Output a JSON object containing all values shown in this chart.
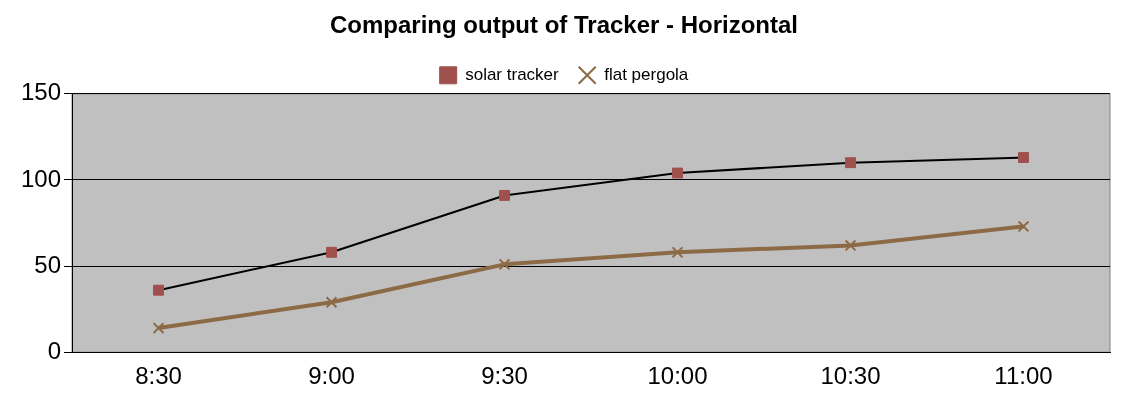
{
  "chart_data": {
    "type": "line",
    "title": "Comparing output of Tracker - Horizontal",
    "categories": [
      "8:30",
      "9:00",
      "9:30",
      "10:00",
      "10:30",
      "11:00"
    ],
    "series": [
      {
        "name": "solar tracker",
        "color": "#000000",
        "colors": [
          "#a0504d",
          "#a0504d",
          "#a0504d",
          "#a0504d",
          "#a0504d",
          "#a0504d"
        ],
        "marker": "square",
        "values": [
          36,
          58,
          91,
          104,
          110,
          113
        ]
      },
      {
        "name": "flat pergola",
        "color": "#8c6a45",
        "marker": "cross",
        "values": [
          14,
          29,
          51,
          58,
          62,
          73
        ]
      }
    ],
    "ylim": [
      0,
      150
    ],
    "yticks": [
      0,
      50,
      100,
      150
    ],
    "grid": "y",
    "legend": "top"
  }
}
